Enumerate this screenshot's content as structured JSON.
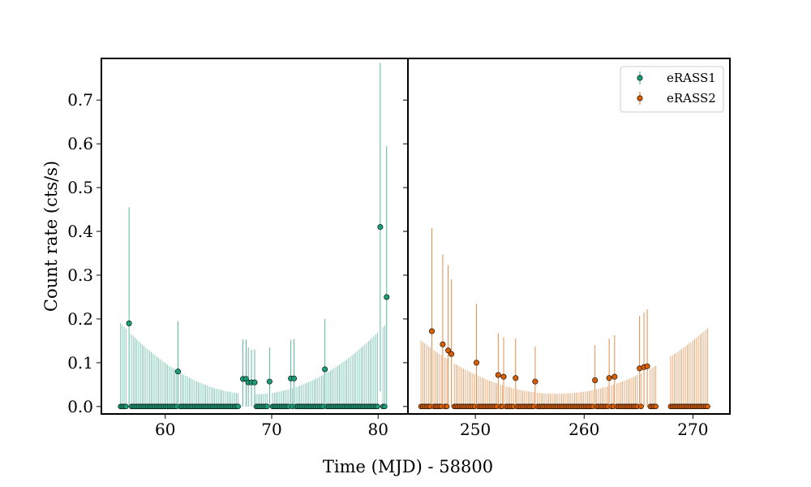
{
  "chart_data": {
    "type": "scatter",
    "title": "",
    "xlabel": "Time (MJD) - 58800",
    "ylabel": "Count rate (cts/s)",
    "ylim": [
      -0.017,
      0.795
    ],
    "yticks": [
      "0.0",
      "0.1",
      "0.2",
      "0.3",
      "0.4",
      "0.5",
      "0.6",
      "0.7"
    ],
    "panels": [
      {
        "xlim": [
          54.0,
          82.8
        ],
        "xticks": [
          "60",
          "70",
          "80"
        ],
        "series": [
          {
            "name": "eRASS1",
            "color": "#1b9e77",
            "dense_range": [
              55.8,
              81.0
            ],
            "dense_step": 0.17,
            "upper_limit": {
              "center": 68.3,
              "base": 0.028,
              "curvature": 0.0104
            },
            "gaps": [
              [
                66.9,
                67.2
              ],
              [
                80.9,
                81.0
              ]
            ],
            "points": [
              {
                "x": 56.6,
                "y": 0.19,
                "err": 0.265
              },
              {
                "x": 61.2,
                "y": 0.08,
                "err": 0.115
              },
              {
                "x": 67.3,
                "y": 0.063,
                "err": 0.09
              },
              {
                "x": 67.6,
                "y": 0.063,
                "err": 0.09
              },
              {
                "x": 67.8,
                "y": 0.055,
                "err": 0.08
              },
              {
                "x": 68.1,
                "y": 0.055,
                "err": 0.075
              },
              {
                "x": 68.4,
                "y": 0.055,
                "err": 0.075
              },
              {
                "x": 69.8,
                "y": 0.057,
                "err": 0.078
              },
              {
                "x": 71.8,
                "y": 0.064,
                "err": 0.088
              },
              {
                "x": 72.1,
                "y": 0.064,
                "err": 0.09
              },
              {
                "x": 75.0,
                "y": 0.085,
                "err": 0.115
              },
              {
                "x": 80.2,
                "y": 0.41,
                "err": 0.375
              },
              {
                "x": 80.8,
                "y": 0.25,
                "err": 0.345
              }
            ]
          }
        ]
      },
      {
        "xlim": [
          243.8,
          273.4
        ],
        "xticks": [
          "250",
          "260",
          "270"
        ],
        "series": [
          {
            "name": "eRASS2",
            "color": "#d95f02",
            "dense_range": [
              245.0,
              271.4
            ],
            "dense_step": 0.17,
            "upper_limit": {
              "center": 257.5,
              "base": 0.029,
              "curvature": 0.00078
            },
            "gaps": [
              [
                266.6,
                267.8
              ]
            ],
            "points": [
              {
                "x": 246.0,
                "y": 0.172,
                "err": 0.235
              },
              {
                "x": 247.0,
                "y": 0.142,
                "err": 0.205
              },
              {
                "x": 247.5,
                "y": 0.128,
                "err": 0.195
              },
              {
                "x": 247.8,
                "y": 0.12,
                "err": 0.17
              },
              {
                "x": 250.1,
                "y": 0.1,
                "err": 0.135
              },
              {
                "x": 252.1,
                "y": 0.072,
                "err": 0.095
              },
              {
                "x": 252.6,
                "y": 0.068,
                "err": 0.09
              },
              {
                "x": 253.7,
                "y": 0.065,
                "err": 0.09
              },
              {
                "x": 255.5,
                "y": 0.057,
                "err": 0.08
              },
              {
                "x": 261.0,
                "y": 0.06,
                "err": 0.08
              },
              {
                "x": 262.3,
                "y": 0.065,
                "err": 0.09
              },
              {
                "x": 262.8,
                "y": 0.068,
                "err": 0.095
              },
              {
                "x": 265.1,
                "y": 0.087,
                "err": 0.12
              },
              {
                "x": 265.5,
                "y": 0.09,
                "err": 0.125
              },
              {
                "x": 265.8,
                "y": 0.092,
                "err": 0.13
              }
            ]
          }
        ]
      }
    ],
    "legend": {
      "placement": "top-right",
      "entries": [
        "eRASS1",
        "eRASS2"
      ]
    }
  }
}
